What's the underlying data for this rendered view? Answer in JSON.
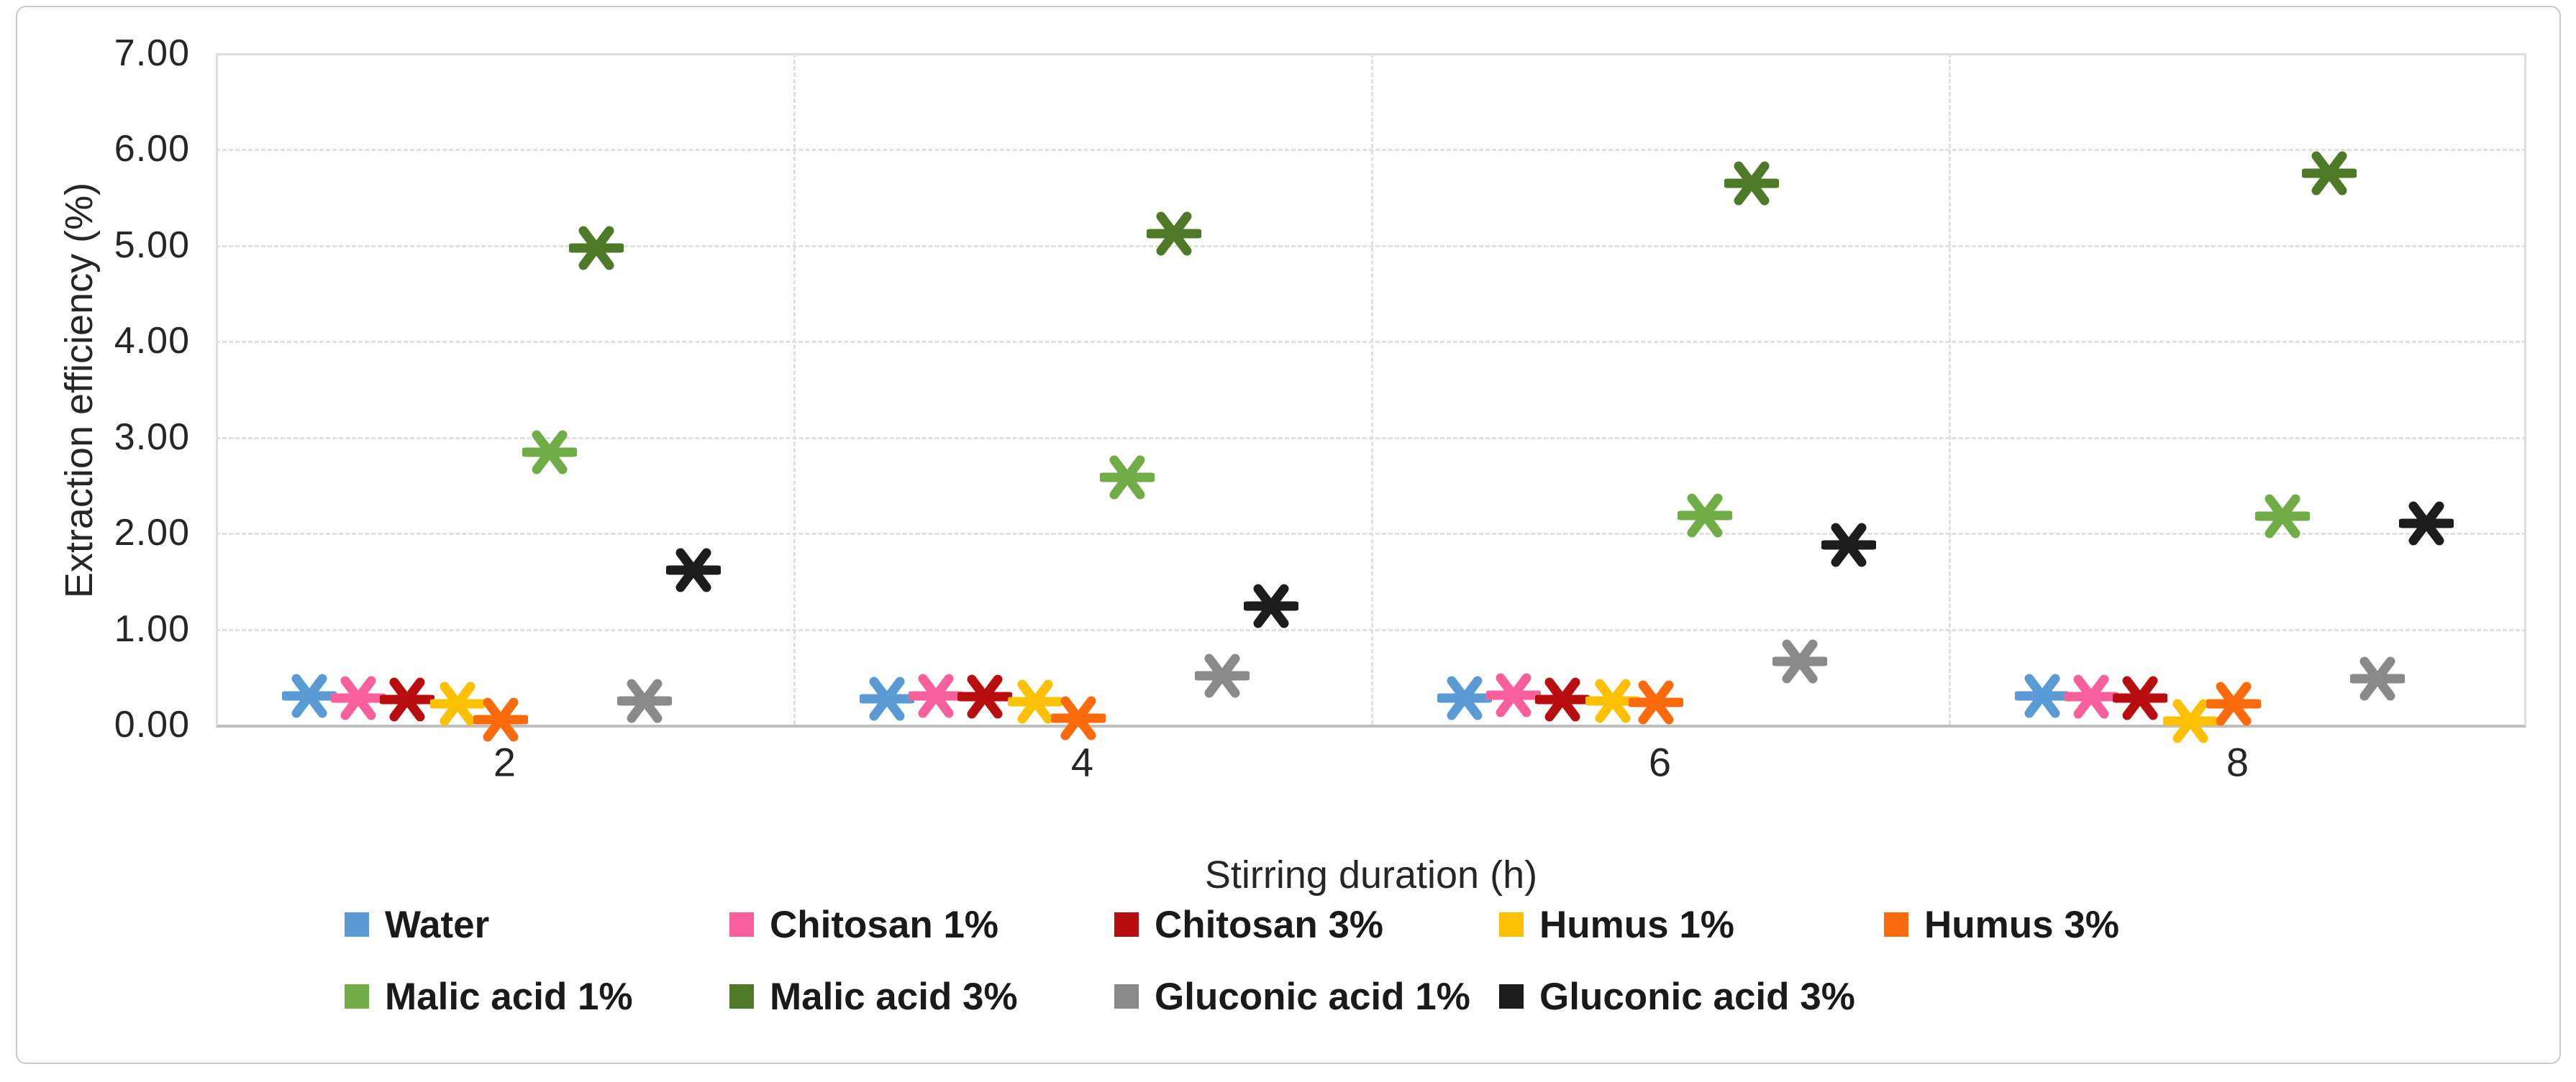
{
  "chart_data": {
    "type": "scatter",
    "title": "",
    "xlabel": "Stirring duration (h)",
    "ylabel": "Extraction efficiency (%)",
    "x_categories": [
      "2",
      "4",
      "6",
      "8"
    ],
    "ylim": [
      0,
      7
    ],
    "ytick_step": 1,
    "ytick_labels": [
      "0.00",
      "1.00",
      "2.00",
      "3.00",
      "4.00",
      "5.00",
      "6.00",
      "7.00"
    ],
    "grid": "horizontal dashed gridlines with dashed vertical panel separators between categories",
    "legend_position": "bottom, two rows",
    "marker_style": "six-arm asterisk",
    "series": [
      {
        "name": "Water",
        "color": "#5B9BD5",
        "values": [
          0.3,
          0.27,
          0.28,
          0.3
        ]
      },
      {
        "name": "Chitosan 1%",
        "color": "#F9609B",
        "values": [
          0.28,
          0.3,
          0.31,
          0.29
        ]
      },
      {
        "name": "Chitosan 3%",
        "color": "#B90E10",
        "values": [
          0.26,
          0.29,
          0.26,
          0.28
        ]
      },
      {
        "name": "Humus 1%",
        "color": "#FFC000",
        "values": [
          0.22,
          0.24,
          0.25,
          0.04
        ]
      },
      {
        "name": "Humus 3%",
        "color": "#FB6B0B",
        "values": [
          0.05,
          0.07,
          0.23,
          0.22
        ]
      },
      {
        "name": "Malic acid 1%",
        "color": "#70AD47",
        "values": [
          2.84,
          2.58,
          2.18,
          2.17
        ]
      },
      {
        "name": "Malic acid 3%",
        "color": "#4E7A27",
        "values": [
          4.97,
          5.12,
          5.64,
          5.75
        ]
      },
      {
        "name": "Gluconic acid 1%",
        "color": "#8A8A8A",
        "values": [
          0.25,
          0.51,
          0.66,
          0.48
        ]
      },
      {
        "name": "Gluconic acid 3%",
        "color": "#1C1C1C",
        "values": [
          1.61,
          1.24,
          1.87,
          2.1
        ]
      }
    ],
    "legend_rows": [
      [
        0,
        1,
        2,
        3,
        4
      ],
      [
        5,
        6,
        7,
        8
      ]
    ],
    "axis_colors": {
      "gridline": "#E0E0E0",
      "axis_line": "#BFBFBF",
      "tick_text": "#262626"
    }
  }
}
